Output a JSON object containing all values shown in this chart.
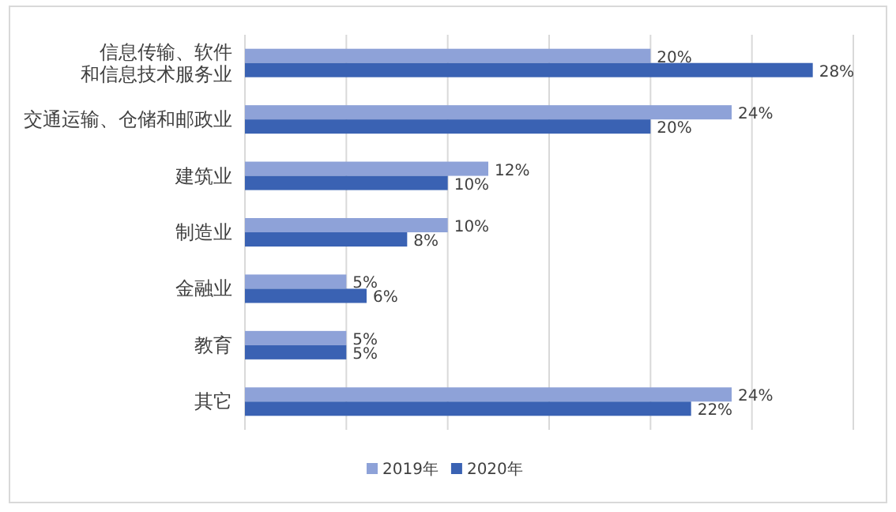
{
  "chart_data": {
    "type": "bar",
    "orientation": "horizontal",
    "categories": [
      "信息传输、软件和信息技术服务业",
      "交通运输、仓储和邮政业",
      "建筑业",
      "制造业",
      "金融业",
      "教育",
      "其它"
    ],
    "series": [
      {
        "name": "2019年",
        "color": "#8ea2d8",
        "values": [
          20,
          24,
          12,
          10,
          5,
          5,
          24
        ],
        "value_labels": [
          "20%",
          "24%",
          "12%",
          "10%",
          "5%",
          "5%",
          "24%"
        ]
      },
      {
        "name": "2020年",
        "color": "#3a62b3",
        "values": [
          28,
          20,
          10,
          8,
          6,
          5,
          22
        ],
        "value_labels": [
          "28%",
          "20%",
          "10%",
          "8%",
          "6%",
          "5%",
          "22%"
        ]
      }
    ],
    "xlim": [
      0,
      30
    ],
    "xticks": [
      {
        "value": 0,
        "label": null
      },
      {
        "value": 5,
        "label": null
      },
      {
        "value": 10,
        "label": null
      },
      {
        "value": 15,
        "label": null
      },
      {
        "value": 20,
        "label": null
      },
      {
        "value": 25,
        "label": null
      },
      {
        "value": 30,
        "label": null
      }
    ],
    "grid": "x",
    "tick_labels": "y",
    "legend": "bottom"
  }
}
